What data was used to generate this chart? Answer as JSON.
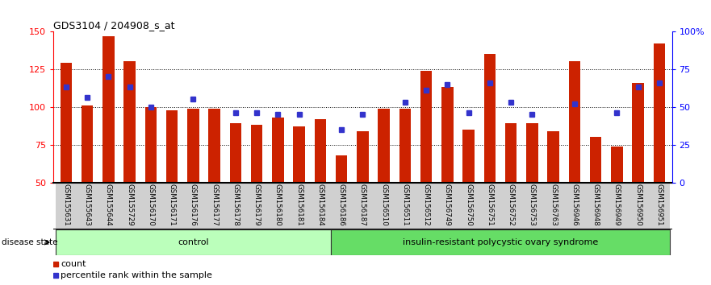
{
  "title": "GDS3104 / 204908_s_at",
  "samples": [
    "GSM155631",
    "GSM155643",
    "GSM155644",
    "GSM155729",
    "GSM156170",
    "GSM156171",
    "GSM156176",
    "GSM156177",
    "GSM156178",
    "GSM156179",
    "GSM156180",
    "GSM156181",
    "GSM156184",
    "GSM156186",
    "GSM156187",
    "GSM156510",
    "GSM156511",
    "GSM156512",
    "GSM156749",
    "GSM156750",
    "GSM156751",
    "GSM156752",
    "GSM156753",
    "GSM156763",
    "GSM156946",
    "GSM156948",
    "GSM156949",
    "GSM156950",
    "GSM156951"
  ],
  "count_values": [
    129,
    101,
    147,
    130,
    100,
    98,
    99,
    99,
    89,
    88,
    93,
    87,
    92,
    68,
    84,
    99,
    99,
    124,
    113,
    85,
    135,
    89,
    89,
    84,
    130,
    80,
    74,
    116,
    142
  ],
  "percentile_values": [
    63,
    56,
    70,
    63,
    50,
    null,
    55,
    null,
    46,
    46,
    45,
    45,
    null,
    35,
    45,
    null,
    53,
    61,
    65,
    46,
    66,
    53,
    45,
    null,
    52,
    null,
    46,
    63,
    66
  ],
  "ylim_left": [
    50,
    150
  ],
  "ylim_right": [
    0,
    100
  ],
  "yticks_left": [
    50,
    75,
    100,
    125,
    150
  ],
  "yticks_right": [
    0,
    25,
    50,
    75,
    100
  ],
  "ytick_labels_right": [
    "0",
    "25",
    "50",
    "75",
    "100%"
  ],
  "bar_color": "#CC2200",
  "marker_color": "#3333CC",
  "control_count": 13,
  "control_label": "control",
  "disease_label": "insulin-resistant polycystic ovary syndrome",
  "disease_state_label": "disease state",
  "legend_count": "count",
  "legend_percentile": "percentile rank within the sample",
  "bar_width": 0.55
}
